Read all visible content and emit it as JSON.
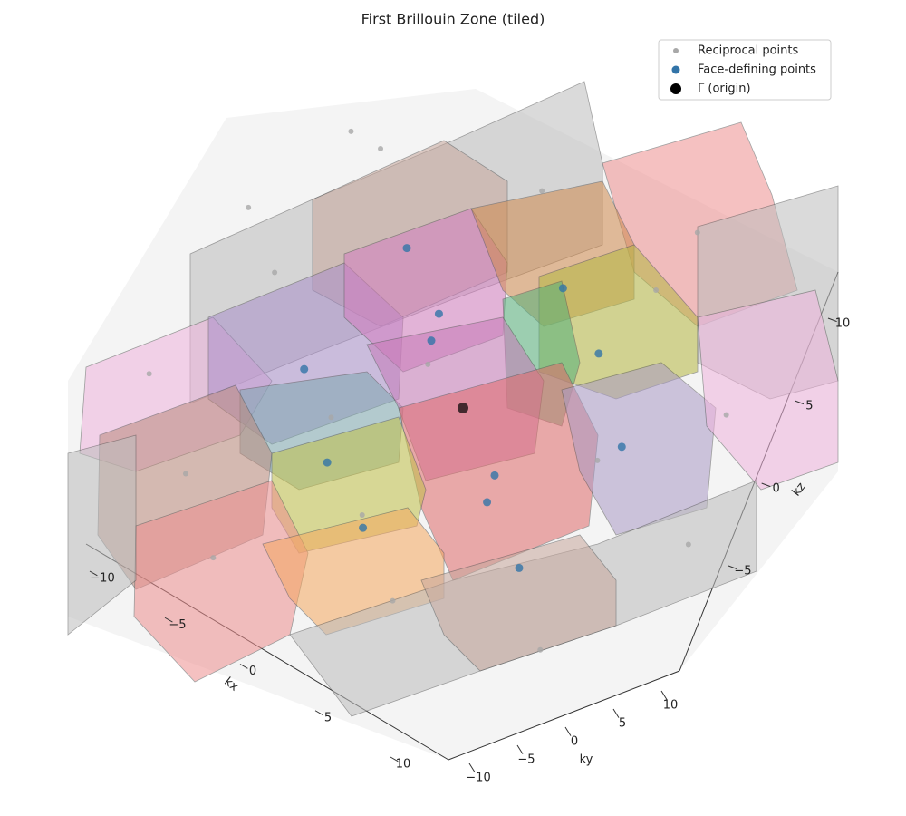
{
  "chart_data": {
    "type": "scatter3d",
    "title": "First Brillouin Zone (tiled)",
    "xlabel": "kx",
    "ylabel": "ky",
    "zlabel": "kz",
    "xlim": [
      -12,
      12
    ],
    "ylim": [
      -12,
      12
    ],
    "zlim": [
      -12,
      12
    ],
    "xticks": [
      {
        "value": -10,
        "label": "−10"
      },
      {
        "value": -5,
        "label": "−5"
      },
      0,
      5,
      10
    ],
    "yticks": [
      {
        "value": -10,
        "label": "−10"
      },
      {
        "value": -5,
        "label": "−5"
      },
      0,
      5,
      10
    ],
    "zticks": [
      {
        "value": -5,
        "label": "−5"
      },
      0,
      5,
      10
    ],
    "legend": "upper right",
    "series": [
      {
        "name": "Reciprocal points",
        "color": "#a8a8a8",
        "x": [
          -21.3,
          -19.4,
          -13.8,
          -10.2,
          -2.7,
          -2.6,
          3.7,
          11.1,
          18.1,
          6.9,
          -5.8,
          7.1,
          -3.0,
          -12.5,
          -18.8,
          -3.8,
          4.6,
          14.8
        ],
        "y": [
          21.7,
          21.8,
          2.0,
          -16.7,
          -9.5,
          -24.8,
          -31.8,
          -24.7,
          -20.3,
          3.2,
          33.5,
          16.3,
          24.8,
          27.8,
          7.1,
          2.3,
          -17.7,
          0.3
        ],
        "z": [
          0,
          0,
          0,
          0,
          0,
          0,
          0,
          0,
          0,
          0,
          0,
          0,
          0,
          0,
          0,
          0,
          0,
          0
        ]
      },
      {
        "name": "Face-defining points",
        "color": "#3274a8",
        "x": [
          -12.1,
          12.1,
          -6.9,
          6.9,
          -5.3,
          5.3,
          -6.6,
          6.6,
          0.6,
          -0.6,
          3.9,
          -3.9
        ],
        "y": [
          13.1,
          -13.1,
          8.3,
          -8.3,
          5.0,
          -5.0,
          -6.2,
          6.2,
          5.0,
          -5.0,
          5.0,
          -5.0
        ],
        "z": [
          0,
          0,
          0,
          0,
          0,
          0,
          0,
          0,
          6.5,
          -6.5,
          4.4,
          -4.4
        ]
      },
      {
        "name": "Γ (origin)",
        "color": "#000000",
        "x": [
          0
        ],
        "y": [
          0
        ],
        "z": [
          0
        ]
      }
    ]
  }
}
